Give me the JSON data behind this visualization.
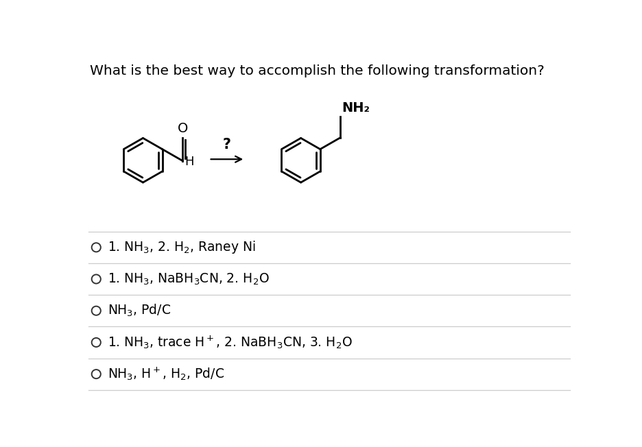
{
  "title": "What is the best way to accomplish the following transformation?",
  "title_fontsize": 14.5,
  "bg_color": "#ffffff",
  "text_color": "#000000",
  "options_raw": [
    [
      "1. NH",
      "3",
      "",
      ", 2. H",
      "2",
      "",
      ", Raney Ni"
    ],
    [
      "1. NH",
      "3",
      "",
      ", NaBH",
      "3",
      "",
      "CN, 2. H",
      "2",
      "O"
    ],
    [
      "NH",
      "3",
      "",
      ", Pd/C"
    ],
    [
      "1. NH",
      "3",
      "",
      ", trace H",
      "",
      "+",
      ", 2. NaBH",
      "3",
      "CN, 3. H",
      "2",
      "O"
    ],
    [
      "NH",
      "3",
      "",
      ", H",
      "",
      "+",
      ", H",
      "2",
      "",
      ", Pd/C"
    ]
  ],
  "option_fontsize": 13.5,
  "divider_color": "#cccccc",
  "fig_width": 9.36,
  "fig_height": 6.52
}
